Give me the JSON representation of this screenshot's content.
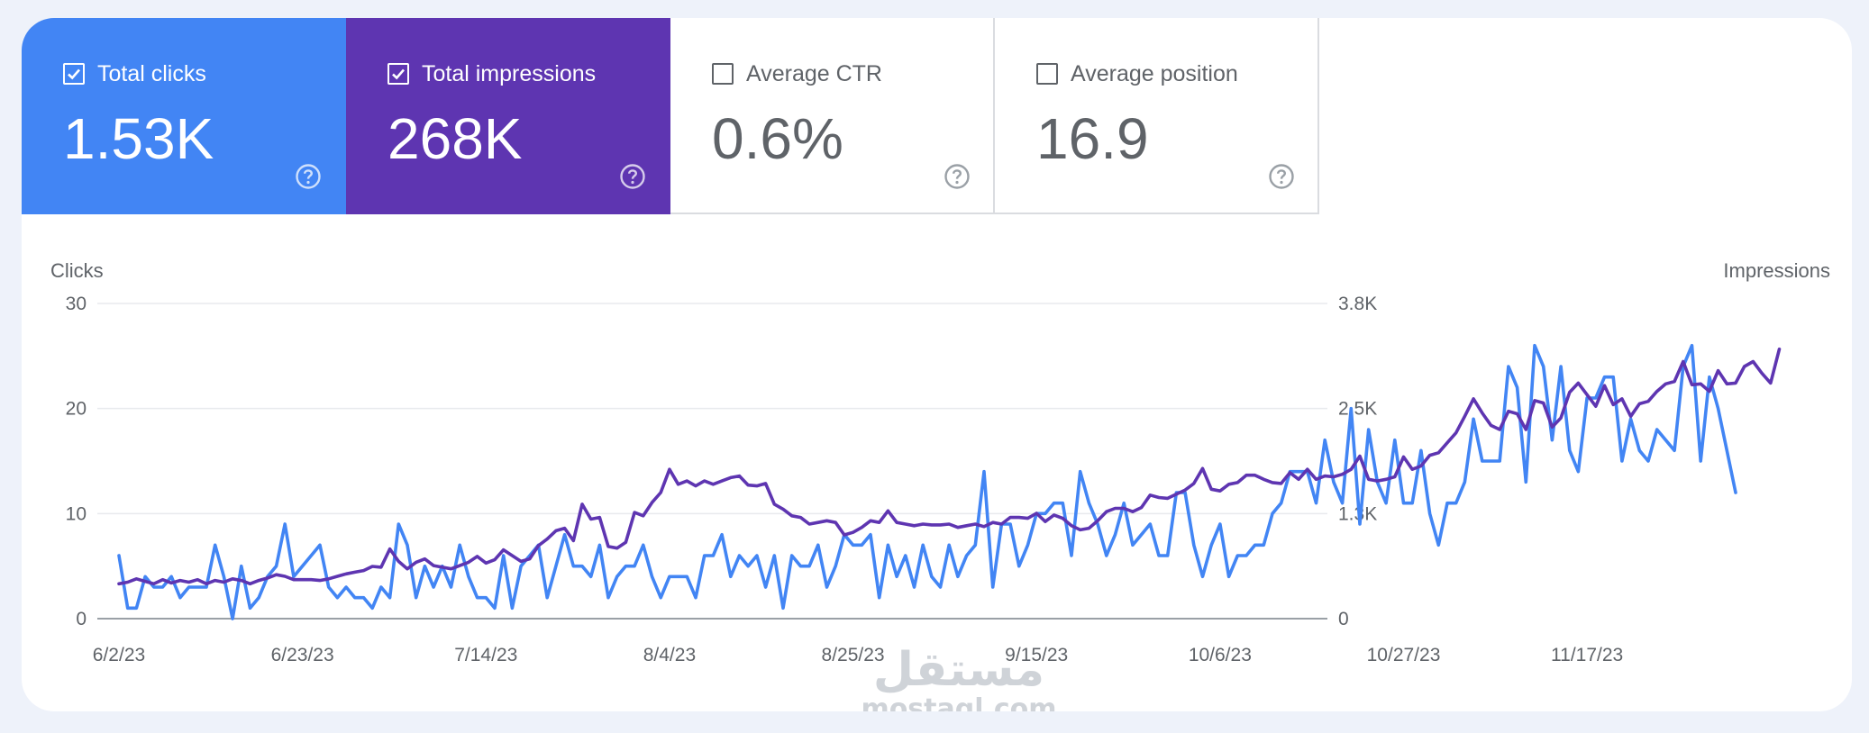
{
  "tiles": [
    {
      "label": "Total clicks",
      "value": "1.53K",
      "checked": true
    },
    {
      "label": "Total impressions",
      "value": "268K",
      "checked": true
    },
    {
      "label": "Average CTR",
      "value": "0.6%",
      "checked": false
    },
    {
      "label": "Average position",
      "value": "16.9",
      "checked": false
    }
  ],
  "icons": {
    "checkbox_checked": "checkbox-checked-icon",
    "checkbox_empty": "checkbox-empty-icon",
    "help": "help-circle-icon"
  },
  "colors": {
    "clicks": "#4285f4",
    "impressions": "#5e35b1",
    "grid": "#e8eaed",
    "axis": "#5f6368"
  },
  "watermark": {
    "arabic": "مستقل",
    "latin": "mostaql.com"
  },
  "chart_data": {
    "type": "line",
    "left_axis": {
      "title": "Clicks",
      "ticks": [
        "30",
        "20",
        "10",
        "0"
      ],
      "range": [
        0,
        30
      ]
    },
    "right_axis": {
      "title": "Impressions",
      "ticks": [
        "3.8K",
        "2.5K",
        "1.3K",
        "0"
      ],
      "range": [
        0,
        3800
      ]
    },
    "x_ticks": [
      "6/2/23",
      "6/23/23",
      "7/14/23",
      "8/4/23",
      "8/25/23",
      "9/15/23",
      "10/6/23",
      "10/27/23",
      "11/17/23"
    ],
    "x_start": "6/2/23",
    "grid": true,
    "legend": "none",
    "series": [
      {
        "name": "Clicks",
        "axis": "left",
        "values": [
          6,
          1,
          1,
          4,
          3,
          3,
          4,
          2,
          3,
          3,
          3,
          7,
          4,
          0,
          5,
          1,
          2,
          4,
          5,
          9,
          4,
          5,
          6,
          7,
          3,
          2,
          3,
          2,
          2,
          1,
          3,
          2,
          9,
          7,
          2,
          5,
          3,
          5,
          3,
          7,
          4,
          2,
          2,
          1,
          6,
          1,
          5,
          6,
          7,
          2,
          5,
          8,
          5,
          5,
          4,
          7,
          2,
          4,
          5,
          5,
          7,
          4,
          2,
          4,
          4,
          4,
          2,
          6,
          6,
          8,
          4,
          6,
          5,
          6,
          3,
          6,
          1,
          6,
          5,
          5,
          7,
          3,
          5,
          8,
          7,
          7,
          8,
          2,
          7,
          4,
          6,
          3,
          7,
          4,
          3,
          7,
          4,
          6,
          7,
          14,
          3,
          9,
          9,
          5,
          7,
          10,
          10,
          11,
          11,
          6,
          14,
          11,
          9,
          6,
          8,
          11,
          7,
          8,
          9,
          6,
          6,
          12,
          12,
          7,
          4,
          7,
          9,
          4,
          6,
          6,
          7,
          7,
          10,
          11,
          14,
          14,
          14,
          11,
          17,
          13,
          11,
          20,
          9,
          18,
          13,
          11,
          17,
          11,
          11,
          16,
          10,
          7,
          11,
          11,
          13,
          19,
          15,
          15,
          15,
          24,
          22,
          13,
          26,
          24,
          17,
          24,
          16,
          14,
          21,
          21,
          23,
          23,
          15,
          19,
          16,
          15,
          18,
          17,
          16,
          24,
          26,
          15,
          23,
          20,
          16,
          12
        ]
      },
      {
        "name": "Impressions",
        "axis": "right",
        "values": [
          420,
          440,
          480,
          450,
          420,
          470,
          430,
          460,
          440,
          470,
          420,
          460,
          440,
          480,
          460,
          420,
          460,
          490,
          530,
          510,
          470,
          470,
          470,
          460,
          480,
          510,
          540,
          560,
          580,
          630,
          620,
          840,
          690,
          600,
          680,
          720,
          640,
          620,
          600,
          640,
          680,
          750,
          670,
          710,
          830,
          760,
          690,
          720,
          880,
          960,
          1060,
          1090,
          940,
          1380,
          1200,
          1220,
          870,
          850,
          920,
          1280,
          1240,
          1400,
          1520,
          1800,
          1620,
          1660,
          1600,
          1660,
          1620,
          1660,
          1700,
          1720,
          1610,
          1600,
          1630,
          1380,
          1320,
          1240,
          1220,
          1140,
          1160,
          1180,
          1160,
          1010,
          1040,
          1100,
          1180,
          1160,
          1300,
          1160,
          1140,
          1120,
          1140,
          1130,
          1130,
          1140,
          1100,
          1120,
          1140,
          1110,
          1160,
          1140,
          1220,
          1220,
          1210,
          1270,
          1170,
          1250,
          1210,
          1120,
          1070,
          1090,
          1180,
          1290,
          1330,
          1330,
          1290,
          1340,
          1490,
          1460,
          1450,
          1500,
          1550,
          1630,
          1810,
          1560,
          1540,
          1620,
          1640,
          1730,
          1730,
          1680,
          1640,
          1630,
          1760,
          1680,
          1800,
          1680,
          1720,
          1710,
          1740,
          1800,
          1960,
          1680,
          1660,
          1680,
          1710,
          1950,
          1800,
          1840,
          1970,
          2000,
          2120,
          2240,
          2440,
          2650,
          2480,
          2330,
          2280,
          2500,
          2470,
          2280,
          2630,
          2600,
          2310,
          2420,
          2730,
          2840,
          2700,
          2560,
          2810,
          2580,
          2650,
          2440,
          2590,
          2620,
          2740,
          2830,
          2860,
          3100,
          2820,
          2830,
          2740,
          2990,
          2830,
          2840,
          3040,
          3100,
          2960,
          2840,
          3250
        ]
      }
    ]
  }
}
